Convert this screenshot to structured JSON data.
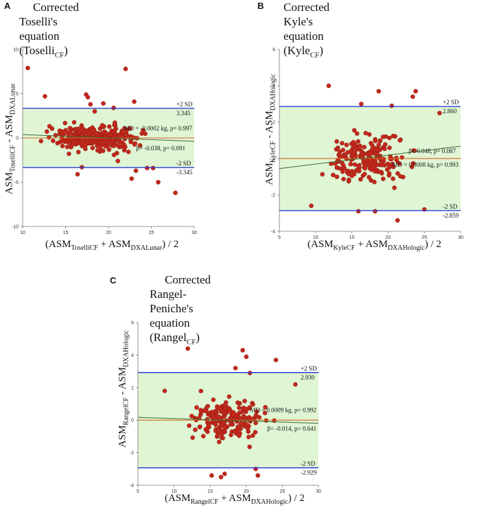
{
  "chart_data": [
    {
      "type": "scatter",
      "panel_label": "A",
      "title_main": "Corrected Toselli's",
      "title_line2": "equation (Toselli",
      "title_sub": "CF",
      "title_end": ")",
      "ylabel": {
        "base1": "ASM",
        "sub1": "ToselliCF",
        "mid": " - ASM",
        "sub2": "DXALunar"
      },
      "xlabel": {
        "open": "(ASM",
        "sub1": "ToselliCF",
        "mid": " + ASM",
        "sub2": "DXALunar",
        "close": ") / 2"
      },
      "xlim": [
        10,
        30
      ],
      "ylim": [
        -10,
        10
      ],
      "xticks": [
        10,
        15,
        20,
        25,
        30
      ],
      "yticks": [
        -10,
        -5,
        0,
        5,
        10
      ],
      "mean_diff": -0.0002,
      "upper_sd": 3.345,
      "lower_sd": -3.345,
      "regression": {
        "x": [
          10,
          30
        ],
        "y": [
          0.38,
          -0.38
        ]
      },
      "annotations": {
        "upper_label": "+2 SD",
        "upper_value": "3.345",
        "lower_label": "-2 SD",
        "lower_value": "-3.345",
        "md_text": "MD = -0.0002 kg, p= 0.997",
        "beta_text": "β= -0.038, p= 0.091"
      },
      "outliers": [
        [
          10.6,
          7.9
        ],
        [
          12.6,
          4.7
        ],
        [
          17.4,
          4.9
        ],
        [
          17.6,
          4.6
        ],
        [
          17.9,
          3.8
        ],
        [
          18.4,
          3.0
        ],
        [
          19.4,
          3.9
        ],
        [
          20.6,
          3.4
        ],
        [
          22.0,
          7.8
        ],
        [
          23.0,
          4.1
        ],
        [
          16.9,
          -3.3
        ],
        [
          21.1,
          -2.6
        ],
        [
          23.2,
          -3.7
        ],
        [
          24.5,
          -3.4
        ],
        [
          25.2,
          -3.4
        ],
        [
          22.7,
          -4.6
        ],
        [
          25.8,
          -5.0
        ],
        [
          27.8,
          -6.2
        ],
        [
          16.4,
          -4.1
        ]
      ],
      "n_cloud": 300,
      "cloud_x": [
        10.3,
        26.8
      ],
      "cloud_y": [
        -3.1,
        3.1
      ],
      "seed": 11
    },
    {
      "type": "scatter",
      "panel_label": "B",
      "title_main": "Corrected Kyle's equation",
      "title_line2": "(Kyle",
      "title_sub": "CF",
      "title_end": ")",
      "ylabel": {
        "base1": "ASM",
        "sub1": "KyleCF",
        "mid": " - ASM",
        "sub2": "DXAHologic"
      },
      "xlabel": {
        "open": "(ASM",
        "sub1": "KyleCF",
        "mid": " + ASM",
        "sub2": "DXAHologic",
        "close": ") / 2"
      },
      "xlim": [
        5,
        30
      ],
      "ylim": [
        -4,
        6
      ],
      "xticks": [
        5,
        10,
        15,
        20,
        25,
        30
      ],
      "yticks": [
        -4,
        -2,
        0,
        2,
        4,
        6
      ],
      "mean_diff": 0.0008,
      "upper_sd": 2.86,
      "lower_sd": -2.859,
      "regression": {
        "x": [
          5,
          30
        ],
        "y": [
          -0.55,
          0.68
        ]
      },
      "annotations": {
        "upper_label": "+2 SD",
        "upper_value": "2.860",
        "lower_label": "-2 SD",
        "lower_value": "-2.859",
        "md_text": "MD = 0.0008 kg, p= 0.993",
        "beta_text": "β= 0.048, p= 0.087"
      },
      "outliers": [
        [
          11.8,
          4.0
        ],
        [
          18.7,
          3.7
        ],
        [
          23.8,
          3.7
        ],
        [
          23.4,
          3.4
        ],
        [
          16.3,
          3.0
        ],
        [
          20.5,
          2.9
        ],
        [
          27.1,
          2.5
        ],
        [
          15.9,
          -2.9
        ],
        [
          21.3,
          -3.4
        ],
        [
          25.0,
          -2.8
        ],
        [
          9.4,
          -2.6
        ],
        [
          18.2,
          -2.9
        ]
      ],
      "n_cloud": 200,
      "cloud_x": [
        8.2,
        26.5
      ],
      "cloud_y": [
        -2.6,
        2.6
      ],
      "seed": 29
    },
    {
      "type": "scatter",
      "panel_label": "C",
      "title_main": "Corrected Rangel-Peniche's",
      "title_line2": "equation (Rangel",
      "title_sub": "CF",
      "title_end": ")",
      "ylabel": {
        "base1": "ASM",
        "sub1": "RangelCF",
        "mid": " - ASM",
        "sub2": "DXAHologic"
      },
      "xlabel": {
        "open": "(ASM",
        "sub1": "RangelCF",
        "mid": " + ASM",
        "sub2": "DXAHologic",
        "close": ") / 2"
      },
      "xlim": [
        5,
        30
      ],
      "ylim": [
        -4,
        6
      ],
      "xticks": [
        5,
        10,
        15,
        20,
        25,
        30
      ],
      "yticks": [
        -4,
        -2,
        0,
        2,
        4,
        6
      ],
      "mean_diff": 0.0009,
      "upper_sd": 2.93,
      "lower_sd": -2.929,
      "regression": {
        "x": [
          5,
          30
        ],
        "y": [
          0.17,
          -0.19
        ]
      },
      "annotations": {
        "upper_label": "+2 SD",
        "upper_value": "2.930",
        "lower_label": "-2 SD",
        "lower_value": "-2.929",
        "md_text": "MD = 0.0009 kg, p= 0.992",
        "beta_text": "β= -0.014, p= 0.641"
      },
      "outliers": [
        [
          11.9,
          4.4
        ],
        [
          19.5,
          4.3
        ],
        [
          20.0,
          3.9
        ],
        [
          24.1,
          3.7
        ],
        [
          18.5,
          3.2
        ],
        [
          20.5,
          2.9
        ],
        [
          15.2,
          -3.4
        ],
        [
          16.5,
          -3.5
        ],
        [
          17.0,
          -3.3
        ],
        [
          21.3,
          -3.0
        ],
        [
          21.6,
          -3.4
        ],
        [
          26.8,
          2.2
        ],
        [
          8.7,
          1.8
        ]
      ],
      "n_cloud": 200,
      "cloud_x": [
        9.0,
        25.8
      ],
      "cloud_y": [
        -2.7,
        2.7
      ],
      "seed": 47
    }
  ]
}
